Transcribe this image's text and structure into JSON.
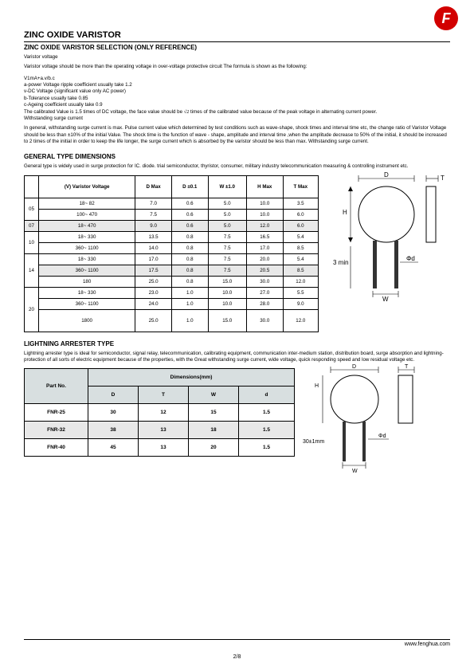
{
  "header": {
    "title": "ZINC OXIDE VARISTOR",
    "subtitle": "ZINC OXIDE VARISTOR SELECTION (ONLY REFERENCE)"
  },
  "intro": {
    "l1": "Varistor voltage",
    "l2": "Varistor voltage should be more than the operating voltage in over-voltage protective circuit The formula is shown as the following:",
    "l3": "V1mA+a.v/b.c",
    "l4": "a-power Voltage ripple coefficient usually take 1.2",
    "l5": "v-DC Voltage (significant value only AC power)",
    "l6": "b-Tolerance usually take 0.85",
    "l7": "c-Ageing coefficient usually take 0.9",
    "l8a": "The calibrated Value is 1.5 times of DC voltage, the face value should be ",
    "l8b": " times of the calibrated value because of the peak voltage in alternating current power.",
    "l9": "Withstanding surge current",
    "l10": "In general, withstanding surge current is max. Pulse current value which determined by test conditions such as wave-shape, shock times and interval time etc, the change ratio of Varistor Voltage should be less than ±10% of the initial Value. The shock time is the function of wave - shape, amplitude and interval time ,when the amplitude decrease to 50% of the initial, it should be increased to 2 times of the initial in order to keep the life longer, the surge current which is absorbed by the varistor should be less than max. Withstanding surge current."
  },
  "general": {
    "title": "GENERAL TYPE DIMENSIONS",
    "desc": "General type is widely used in surge protection for IC. diode. trial semiconductor, thyristor, consumer, military industry telecommunication measuring & controlling instrument etc.",
    "table": {
      "headers": [
        "(V) Varistor Voltage",
        "D Max",
        "D ±0.1",
        "W ±1.0",
        "H Max",
        "T Max"
      ],
      "groups": [
        {
          "label": "05",
          "shade": false,
          "rows": [
            {
              "v": "18~ 82",
              "d": "7.0",
              "dp": "0.6",
              "w": "5.0",
              "h": "10.0",
              "t": "3.5"
            },
            {
              "v": "100~ 470",
              "d": "7.5",
              "dp": "0.6",
              "w": "5.0",
              "h": "10.0",
              "t": "6.0"
            }
          ]
        },
        {
          "label": "07",
          "shade": true,
          "rows": [
            {
              "v": "18~ 470",
              "d": "9.0",
              "dp": "0.6",
              "w": "5.0",
              "h": "12.0",
              "t": "6.0"
            }
          ]
        },
        {
          "label": "10",
          "shade": false,
          "rows": [
            {
              "v": "18~ 330",
              "d": "13.5",
              "dp": "0.8",
              "w": "7.5",
              "h": "16.5",
              "t": "5.4"
            },
            {
              "v": "360~ 1100",
              "d": "14.0",
              "dp": "0.8",
              "w": "7.5",
              "h": "17.0",
              "t": "8.5"
            }
          ]
        },
        {
          "label": "14",
          "shade": false,
          "rows": [
            {
              "v": "18~ 330",
              "d": "17.0",
              "dp": "0.8",
              "w": "7.5",
              "h": "20.0",
              "t": "5.4"
            },
            {
              "v": "360~ 1100",
              "d": "17.5",
              "dp": "0.8",
              "w": "7.5",
              "h": "20.5",
              "t": "8.5",
              "shade": true
            },
            {
              "v": "180",
              "d": "25.0",
              "dp": "0.8",
              "w": "15.0",
              "h": "30.0",
              "t": "12.0"
            }
          ]
        },
        {
          "label": "20",
          "shade": false,
          "rows": [
            {
              "v": "18~ 330",
              "d": "23.0",
              "dp": "1.0",
              "w": "10.0",
              "h": "27.0",
              "t": "5.5"
            },
            {
              "v": "360~ 1100",
              "d": "24.0",
              "dp": "1.0",
              "w": "10.0",
              "h": "28.0",
              "t": "9.0"
            },
            {
              "v": "1800",
              "d": "25.0",
              "dp": "1.0",
              "w": "15.0",
              "h": "30.0",
              "t": "12.0",
              "tall": true
            }
          ]
        }
      ]
    },
    "diagram": {
      "D": "D",
      "T": "T",
      "H": "H",
      "3min": "3 min",
      "phid": "Φd",
      "W": "W"
    }
  },
  "lightning": {
    "title": "LIGHTNING ARRESTER TYPE",
    "desc": "Lightning arrester type is ideal for semiconductor, signal relay, telecommunication, calibrating equipment, communication inter-medium station, distribution board, surge absorption and lightning-protection of all sorts of electric equipment because of the properties, with the Great withstanding surge current, wide voltage, quick responding speed and low residual voltage etc.",
    "table": {
      "part_header": "Part No.",
      "dim_header": "Dimensions(mm)",
      "cols": [
        "D",
        "T",
        "W",
        "d"
      ],
      "rows": [
        {
          "part": "FNR-25",
          "d": "30",
          "t": "12",
          "w": "15",
          "dd": "1.5",
          "shade": false
        },
        {
          "part": "FNR-32",
          "d": "38",
          "t": "13",
          "w": "18",
          "dd": "1.5",
          "shade": true
        },
        {
          "part": "FNR-40",
          "d": "45",
          "t": "13",
          "w": "20",
          "dd": "1.5",
          "shade": false
        }
      ]
    },
    "diagram": {
      "D": "D",
      "T": "T",
      "H": "H",
      "30": "30±1mm",
      "phid": "Φd",
      "W": "W"
    }
  },
  "footer": {
    "url": "www.fenghua.com",
    "page": "2/8"
  }
}
